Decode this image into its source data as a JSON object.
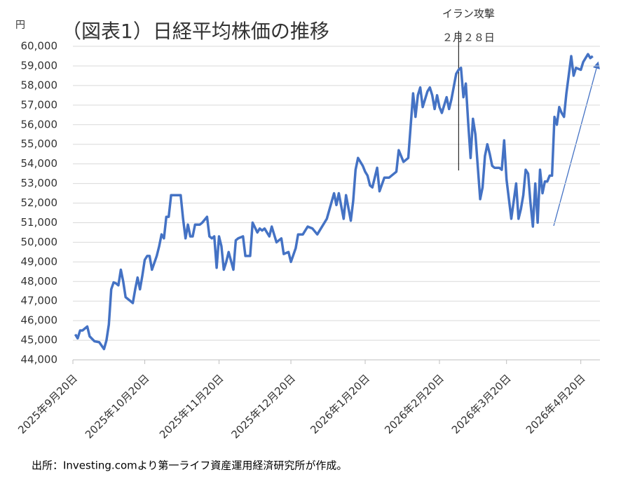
{
  "chart_data": {
    "type": "line",
    "title": "（図表1）日経平均株価の推移",
    "y_unit": "円",
    "source": "出所：Investing.comより第一ライフ資産運用経済研究所が作成。",
    "annotation": {
      "label": "イラン攻撃",
      "date_label": "２月２８日",
      "x": "2026-02-28"
    },
    "x": [
      "2025-09-21",
      "2025-09-22",
      "2025-09-23",
      "2025-09-24",
      "2025-09-26",
      "2025-09-27",
      "2025-09-29",
      "2025-10-01",
      "2025-10-03",
      "2025-10-04",
      "2025-10-05",
      "2025-10-06",
      "2025-10-07",
      "2025-10-08",
      "2025-10-09",
      "2025-10-10",
      "2025-10-11",
      "2025-10-12",
      "2025-10-13",
      "2025-10-15",
      "2025-10-16",
      "2025-10-17",
      "2025-10-18",
      "2025-10-19",
      "2025-10-20",
      "2025-10-21",
      "2025-10-22",
      "2025-10-23",
      "2025-10-25",
      "2025-10-26",
      "2025-10-27",
      "2025-10-28",
      "2025-10-29",
      "2025-10-30",
      "2025-10-31",
      "2025-11-02",
      "2025-11-04",
      "2025-11-05",
      "2025-11-06",
      "2025-11-07",
      "2025-11-08",
      "2025-11-09",
      "2025-11-10",
      "2025-11-12",
      "2025-11-13",
      "2025-11-15",
      "2025-11-16",
      "2025-11-17",
      "2025-11-18",
      "2025-11-19",
      "2025-11-20",
      "2025-11-21",
      "2025-11-22",
      "2025-11-23",
      "2025-11-24",
      "2025-11-26",
      "2025-11-27",
      "2025-11-28",
      "2025-11-30",
      "2025-12-01",
      "2025-12-03",
      "2025-12-04",
      "2025-12-06",
      "2025-12-07",
      "2025-12-08",
      "2025-12-09",
      "2025-12-11",
      "2025-12-12",
      "2025-12-13",
      "2025-12-14",
      "2025-12-16",
      "2025-12-17",
      "2025-12-19",
      "2025-12-20",
      "2025-12-22",
      "2025-12-23",
      "2025-12-25",
      "2025-12-27",
      "2025-12-29",
      "2025-12-31",
      "2026-01-04",
      "2026-01-07",
      "2026-01-08",
      "2026-01-09",
      "2026-01-11",
      "2026-01-12",
      "2026-01-14",
      "2026-01-15",
      "2026-01-16",
      "2026-01-17",
      "2026-01-19",
      "2026-01-20",
      "2026-01-21",
      "2026-01-22",
      "2026-01-23",
      "2026-01-25",
      "2026-01-26",
      "2026-01-28",
      "2026-01-30",
      "2026-02-02",
      "2026-02-03",
      "2026-02-05",
      "2026-02-07",
      "2026-02-09",
      "2026-02-10",
      "2026-02-11",
      "2026-02-12",
      "2026-02-13",
      "2026-02-15",
      "2026-02-16",
      "2026-02-17",
      "2026-02-18",
      "2026-02-19",
      "2026-02-20",
      "2026-02-21",
      "2026-02-23",
      "2026-02-24",
      "2026-02-25",
      "2026-02-27",
      "2026-02-28",
      "2026-03-01",
      "2026-03-02",
      "2026-03-03",
      "2026-03-04",
      "2026-03-05",
      "2026-03-06",
      "2026-03-07",
      "2026-03-09",
      "2026-03-10",
      "2026-03-11",
      "2026-03-12",
      "2026-03-13",
      "2026-03-14",
      "2026-03-15",
      "2026-03-17",
      "2026-03-18",
      "2026-03-19",
      "2026-03-20",
      "2026-03-21",
      "2026-03-22",
      "2026-03-24",
      "2026-03-25",
      "2026-03-26",
      "2026-03-27",
      "2026-03-28",
      "2026-03-29",
      "2026-03-30",
      "2026-03-31",
      "2026-04-01",
      "2026-04-02",
      "2026-04-03",
      "2026-04-04",
      "2026-04-05",
      "2026-04-06",
      "2026-04-07",
      "2026-04-08",
      "2026-04-09",
      "2026-04-10",
      "2026-04-11",
      "2026-04-12",
      "2026-04-13",
      "2026-04-14",
      "2026-04-16",
      "2026-04-17",
      "2026-04-18",
      "2026-04-20",
      "2026-04-21",
      "2026-04-23",
      "2026-04-24",
      "2026-04-25"
    ],
    "series": [
      {
        "color": "#4472c4",
        "values": [
          45300,
          45100,
          45500,
          45500,
          45700,
          45200,
          44950,
          44900,
          44550,
          45000,
          45800,
          47600,
          47950,
          47900,
          47800,
          48600,
          48000,
          47200,
          47100,
          46900,
          47600,
          48200,
          47600,
          48300,
          49100,
          49300,
          49300,
          48600,
          49300,
          49800,
          50400,
          50200,
          51300,
          51300,
          52400,
          52400,
          52400,
          51200,
          50200,
          50900,
          50300,
          50300,
          50900,
          50900,
          51000,
          51300,
          50300,
          50200,
          50300,
          48700,
          50300,
          49800,
          48600,
          49000,
          49500,
          48600,
          50100,
          50200,
          50300,
          49300,
          49300,
          51000,
          50500,
          50700,
          50600,
          50700,
          50300,
          50800,
          50400,
          50000,
          50200,
          49400,
          49500,
          49000,
          49700,
          50400,
          50400,
          50800,
          50700,
          50400,
          51200,
          52500,
          51900,
          52500,
          51200,
          52400,
          51100,
          52100,
          53700,
          54300,
          53900,
          53600,
          53400,
          52900,
          52800,
          53800,
          52600,
          53300,
          53300,
          53600,
          54700,
          54100,
          54300,
          57600,
          56400,
          57500,
          57900,
          56900,
          57700,
          57900,
          57500,
          56800,
          57500,
          56900,
          56600,
          57400,
          56800,
          57300,
          58600,
          58800,
          58900,
          57400,
          58100,
          56100,
          54300,
          56300,
          55500,
          52200,
          52800,
          54400,
          55000,
          54500,
          53900,
          53800,
          53800,
          53700,
          55200,
          53200,
          52200,
          51200,
          53000,
          51200,
          51700,
          52400,
          53700,
          53500,
          52000,
          50800,
          53000,
          51000,
          53700,
          52500,
          53100,
          53100,
          53400,
          53400,
          56400,
          56000,
          56900,
          56600,
          56400,
          57600,
          59500,
          58500,
          58900,
          58800,
          59200,
          59600,
          59400,
          59500
        ]
      }
    ],
    "xlim": [
      "2025-09-20",
      "2026-04-28"
    ],
    "xticks": [
      {
        "value": "2025-09-20",
        "label": "2025年9月20日"
      },
      {
        "value": "2025-10-20",
        "label": "2025年10月20日"
      },
      {
        "value": "2025-11-20",
        "label": "2025年11月20日"
      },
      {
        "value": "2025-12-20",
        "label": "2025年12月20日"
      },
      {
        "value": "2026-01-20",
        "label": "2026年1月20日"
      },
      {
        "value": "2026-02-20",
        "label": "2026年2月20日"
      },
      {
        "value": "2026-03-20",
        "label": "2026年3月20日"
      },
      {
        "value": "2026-04-20",
        "label": "2026年4月20日"
      }
    ],
    "ylim": [
      44000,
      60000
    ],
    "yticks": [
      {
        "value": 44000,
        "label": "44,000"
      },
      {
        "value": 45000,
        "label": "45,000"
      },
      {
        "value": 46000,
        "label": "46,000"
      },
      {
        "value": 47000,
        "label": "47,000"
      },
      {
        "value": 48000,
        "label": "48,000"
      },
      {
        "value": 49000,
        "label": "49,000"
      },
      {
        "value": 50000,
        "label": "50,000"
      },
      {
        "value": 51000,
        "label": "51,000"
      },
      {
        "value": 52000,
        "label": "52,000"
      },
      {
        "value": 53000,
        "label": "53,000"
      },
      {
        "value": 54000,
        "label": "54,000"
      },
      {
        "value": 55000,
        "label": "55,000"
      },
      {
        "value": 56000,
        "label": "56,000"
      },
      {
        "value": 57000,
        "label": "57,000"
      },
      {
        "value": 58000,
        "label": "58,000"
      },
      {
        "value": 59000,
        "label": "59,000"
      },
      {
        "value": 60000,
        "label": "60,000"
      }
    ],
    "grid": true
  }
}
